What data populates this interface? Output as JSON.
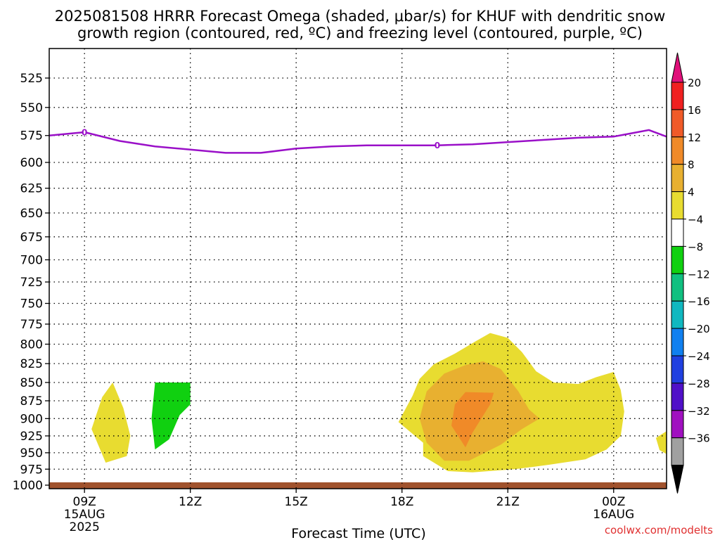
{
  "chart_data": {
    "type": "heatmap",
    "title_line1": "2025081508 HRRR Forecast Omega (shaded, μbar/s) for KHUF with dendritic snow",
    "title_line2": "growth region (contoured, red, ºC) and freezing level (contoured, purple, ºC)",
    "xlabel": "Forecast Time (UTC)",
    "ylabel": "",
    "credit": "coolwx.com/modelts",
    "x_range_hours": [
      8,
      25.5
    ],
    "y_range_mb": [
      1000,
      505
    ],
    "grid": true,
    "y_ticks": [
      525,
      550,
      575,
      600,
      625,
      650,
      675,
      700,
      725,
      750,
      775,
      800,
      825,
      850,
      875,
      900,
      925,
      950,
      975,
      1000
    ],
    "x_ticks": [
      {
        "hour": 9,
        "label": "09Z",
        "sub1": "15AUG",
        "sub2": "2025"
      },
      {
        "hour": 12,
        "label": "12Z",
        "sub1": "",
        "sub2": ""
      },
      {
        "hour": 15,
        "label": "15Z",
        "sub1": "",
        "sub2": ""
      },
      {
        "hour": 18,
        "label": "18Z",
        "sub1": "",
        "sub2": ""
      },
      {
        "hour": 21,
        "label": "21Z",
        "sub1": "",
        "sub2": ""
      },
      {
        "hour": 24,
        "label": "00Z",
        "sub1": "16AUG",
        "sub2": ""
      }
    ],
    "colorbar": {
      "labels": [
        "20",
        "16",
        "12",
        "8",
        "4",
        "−4",
        "−8",
        "−12",
        "−16",
        "−20",
        "−24",
        "−28",
        "−32",
        "−36"
      ],
      "top_color": "#e0107a",
      "bottom_color": "#000000",
      "bands": [
        "#f02020",
        "#f05a28",
        "#f08a28",
        "#e8b030",
        "#e8dc30",
        "#ffffff",
        "#10d010",
        "#10c080",
        "#10b8c0",
        "#1080f0",
        "#2040e0",
        "#5010c8",
        "#a010c0",
        "#a0a0a0"
      ]
    },
    "freezing_level": {
      "color": "#9a10c8",
      "label": "0",
      "label_points": [
        [
          9.0,
          572
        ],
        [
          19.0,
          584
        ]
      ],
      "points": [
        [
          8,
          575
        ],
        [
          9,
          572
        ],
        [
          10,
          580
        ],
        [
          11,
          585
        ],
        [
          12,
          588
        ],
        [
          13,
          591
        ],
        [
          14,
          591
        ],
        [
          15,
          587
        ],
        [
          16,
          585
        ],
        [
          17,
          584
        ],
        [
          18,
          584
        ],
        [
          19,
          584
        ],
        [
          20,
          583
        ],
        [
          21,
          581
        ],
        [
          22,
          579
        ],
        [
          23,
          577
        ],
        [
          24,
          576
        ],
        [
          24.5,
          573
        ],
        [
          25,
          570
        ],
        [
          25.5,
          576
        ]
      ]
    },
    "omega_regions": [
      {
        "value": "4",
        "color": "#e8dc30",
        "points": [
          [
            9.6,
            965
          ],
          [
            9.2,
            915
          ],
          [
            9.5,
            870
          ],
          [
            9.8,
            850
          ],
          [
            10.1,
            885
          ],
          [
            10.3,
            925
          ],
          [
            10.2,
            955
          ]
        ]
      },
      {
        "value": "-4",
        "color": "#10d010",
        "points": [
          [
            11.0,
            945
          ],
          [
            10.9,
            900
          ],
          [
            11.0,
            850
          ],
          [
            12.0,
            850
          ],
          [
            12.0,
            880
          ],
          [
            11.7,
            895
          ],
          [
            11.4,
            930
          ]
        ]
      },
      {
        "value": "4",
        "color": "#e8dc30",
        "points": [
          [
            18.6,
            955
          ],
          [
            18.6,
            935
          ],
          [
            17.9,
            905
          ],
          [
            18.3,
            868
          ],
          [
            18.5,
            845
          ],
          [
            18.9,
            826
          ],
          [
            19.5,
            812
          ],
          [
            20.1,
            796
          ],
          [
            20.5,
            786
          ],
          [
            21.0,
            792
          ],
          [
            21.4,
            810
          ],
          [
            21.8,
            835
          ],
          [
            22.3,
            850
          ],
          [
            23.0,
            852
          ],
          [
            23.5,
            843
          ],
          [
            24.0,
            836
          ],
          [
            24.2,
            860
          ],
          [
            24.3,
            890
          ],
          [
            24.2,
            925
          ],
          [
            23.8,
            945
          ],
          [
            23.2,
            960
          ],
          [
            22.2,
            968
          ],
          [
            21.2,
            975
          ],
          [
            20.0,
            980
          ],
          [
            19.3,
            978
          ]
        ]
      },
      {
        "value": "8",
        "color": "#e8b030",
        "points": [
          [
            19.2,
            962
          ],
          [
            18.7,
            935
          ],
          [
            18.5,
            900
          ],
          [
            18.7,
            862
          ],
          [
            19.2,
            838
          ],
          [
            19.8,
            827
          ],
          [
            20.3,
            822
          ],
          [
            20.8,
            832
          ],
          [
            21.3,
            862
          ],
          [
            21.6,
            887
          ],
          [
            21.9,
            900
          ],
          [
            21.4,
            915
          ],
          [
            20.8,
            938
          ],
          [
            19.9,
            962
          ]
        ]
      },
      {
        "value": "12",
        "color": "#f08a28",
        "points": [
          [
            19.8,
            942
          ],
          [
            19.4,
            910
          ],
          [
            19.5,
            880
          ],
          [
            19.8,
            863
          ],
          [
            20.6,
            864
          ],
          [
            20.5,
            880
          ],
          [
            20.0,
            920
          ]
        ]
      },
      {
        "value": "4",
        "color": "#e8dc30",
        "points": [
          [
            25.5,
            918
          ],
          [
            25.2,
            928
          ],
          [
            25.3,
            946
          ],
          [
            25.5,
            952
          ]
        ]
      }
    ],
    "terrain_color": "#a0522d"
  }
}
